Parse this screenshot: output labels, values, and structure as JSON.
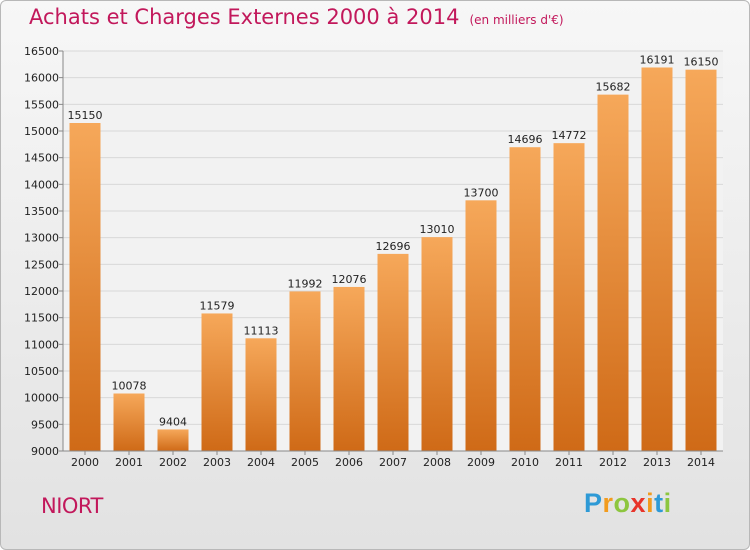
{
  "header": {
    "title": "Achats et Charges Externes 2000 à 2014",
    "subtitle": "(en milliers d'€)"
  },
  "commune": "NIORT",
  "logo": {
    "letters": [
      "P",
      "r",
      "o",
      "x",
      "i",
      "t",
      "i"
    ],
    "colors": [
      "#2e9ad6",
      "#f29b1d",
      "#8dc63f",
      "#e8342a",
      "#f29b1d",
      "#2e9ad6",
      "#8dc63f"
    ]
  },
  "colors": {
    "bar_light": "#f6a85a",
    "bar_dark": "#cf6a17",
    "grid": "#d8d8d8",
    "axis": "#888888"
  },
  "chart_data": {
    "type": "bar",
    "categories": [
      "2000",
      "2001",
      "2002",
      "2003",
      "2004",
      "2005",
      "2006",
      "2007",
      "2008",
      "2009",
      "2010",
      "2011",
      "2012",
      "2013",
      "2014"
    ],
    "values": [
      15150,
      10078,
      9404,
      11579,
      11113,
      11992,
      12076,
      12696,
      13010,
      13700,
      14696,
      14772,
      15682,
      16191,
      16150
    ],
    "title": "Achats et Charges Externes 2000 à 2014",
    "ylim": [
      9000,
      16500
    ],
    "yticks": [
      9000,
      9500,
      10000,
      10500,
      11000,
      11500,
      12000,
      12500,
      13000,
      13500,
      14000,
      14500,
      15000,
      15500,
      16000,
      16500
    ],
    "grid": true,
    "data_labels": true
  }
}
